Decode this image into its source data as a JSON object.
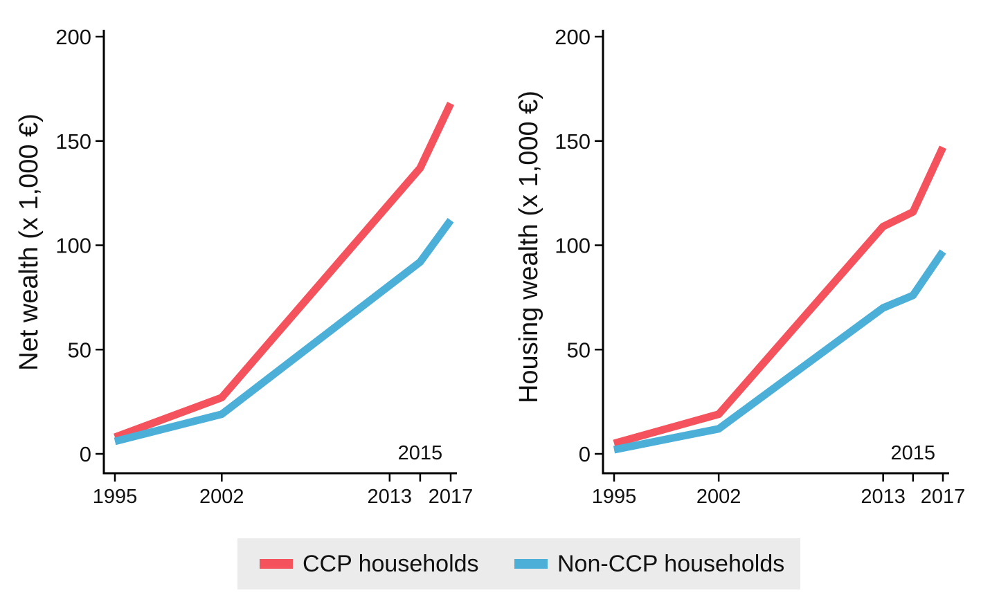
{
  "chart_data": [
    {
      "type": "line",
      "ylabel": "Net wealth (x 1,000 €)",
      "xlabel": "",
      "ylim": [
        0,
        200
      ],
      "yticks": [
        0,
        50,
        100,
        150,
        200
      ],
      "xticks": [
        "1995",
        "2002",
        "2013",
        "2017"
      ],
      "x_annotation": "2015",
      "x": [
        1995,
        2002,
        2015,
        2017
      ],
      "series": [
        {
          "name": "CCP households",
          "color": "#f4525c",
          "values": [
            8,
            27,
            137,
            168
          ]
        },
        {
          "name": "Non-CCP households",
          "color": "#4bafd8",
          "values": [
            6,
            19,
            92,
            112
          ]
        }
      ]
    },
    {
      "type": "line",
      "ylabel": "Housing wealth (x 1,000 €)",
      "xlabel": "",
      "ylim": [
        0,
        200
      ],
      "yticks": [
        0,
        50,
        100,
        150,
        200
      ],
      "xticks": [
        "1995",
        "2002",
        "2013",
        "2017"
      ],
      "x_annotation": "2015",
      "x": [
        1995,
        2002,
        2013,
        2015,
        2017
      ],
      "series": [
        {
          "name": "CCP households",
          "color": "#f4525c",
          "values": [
            5,
            19,
            109,
            116,
            147
          ]
        },
        {
          "name": "Non-CCP households",
          "color": "#4bafd8",
          "values": [
            2,
            12,
            70,
            76,
            97
          ]
        }
      ]
    }
  ],
  "legend": {
    "items": [
      {
        "label": "CCP households",
        "color": "#f4525c"
      },
      {
        "label": "Non-CCP households",
        "color": "#4bafd8"
      }
    ]
  }
}
